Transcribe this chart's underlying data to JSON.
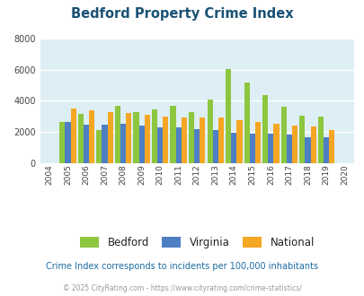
{
  "title": "Bedford Property Crime Index",
  "years": [
    2004,
    2005,
    2006,
    2007,
    2008,
    2009,
    2010,
    2011,
    2012,
    2013,
    2014,
    2015,
    2016,
    2017,
    2018,
    2019,
    2020
  ],
  "bedford": [
    null,
    2650,
    3150,
    2100,
    3650,
    3250,
    3450,
    3650,
    3250,
    4050,
    6050,
    5150,
    4350,
    3600,
    3050,
    3000,
    null
  ],
  "virginia": [
    null,
    2620,
    2470,
    2470,
    2520,
    2390,
    2280,
    2260,
    2160,
    2090,
    1950,
    1870,
    1870,
    1790,
    1660,
    1650,
    null
  ],
  "national": [
    null,
    3480,
    3360,
    3260,
    3230,
    3080,
    2960,
    2920,
    2940,
    2940,
    2720,
    2620,
    2500,
    2380,
    2310,
    2120,
    null
  ],
  "bedford_color": "#8dc63f",
  "virginia_color": "#4e7fc4",
  "national_color": "#f5a623",
  "bg_color": "#ddeef5",
  "ylim": [
    0,
    8000
  ],
  "yticks": [
    0,
    2000,
    4000,
    6000,
    8000
  ],
  "legend_labels": [
    "Bedford",
    "Virginia",
    "National"
  ],
  "subtitle": "Crime Index corresponds to incidents per 100,000 inhabitants",
  "footer": "© 2025 CityRating.com - https://www.cityrating.com/crime-statistics/",
  "title_color": "#1a5276",
  "subtitle_color": "#1c6ca1",
  "footer_color": "#999999",
  "bar_width": 0.3
}
